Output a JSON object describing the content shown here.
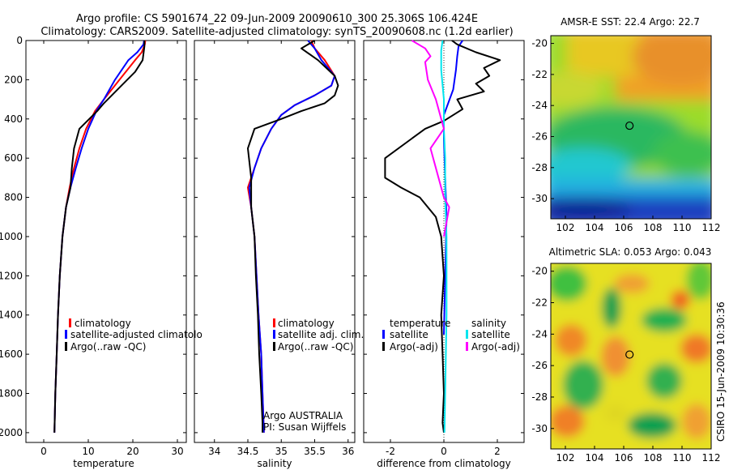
{
  "header": {
    "line1": "Argo profile: CS 5901674_22 09-Jun-2009 20090610_300 25.306S 106.424E",
    "line2": "Climatology: CARS2009. Satellite-adjusted climatology: synTS_20090608.nc (1.2d earlier)"
  },
  "colors": {
    "climatology": "#ff0000",
    "satellite": "#0000ff",
    "argo": "#000000",
    "sal_satellite": "#00e5ee",
    "sal_argo": "#ff00ff"
  },
  "chart_data": [
    {
      "type": "line",
      "id": "temperature",
      "xlabel": "temperature",
      "xlim": [
        -4,
        32
      ],
      "xticks": [
        0,
        10,
        20,
        30
      ],
      "ylim": [
        2050,
        0
      ],
      "yticks": [
        0,
        200,
        400,
        600,
        800,
        1000,
        1200,
        1400,
        1600,
        1800,
        2000
      ],
      "legend": {
        "placement": "bottom-center",
        "entries": [
          "climatology",
          "satellite-adjusted climatolo",
          "Argo(..raw -QC)"
        ]
      },
      "series": [
        {
          "name": "climatology",
          "x": [
            22.8,
            22.7,
            22.0,
            20.5,
            17.0,
            13.5,
            11.5,
            9.5,
            8.0,
            6.8,
            5.8,
            5.0,
            4.2,
            3.6,
            3.2,
            2.9,
            2.6,
            2.4
          ],
          "y": [
            0,
            20,
            60,
            100,
            200,
            300,
            360,
            450,
            550,
            650,
            750,
            850,
            1000,
            1200,
            1400,
            1600,
            1800,
            2000
          ]
        },
        {
          "name": "satellite-adjusted",
          "x": [
            22.5,
            22.4,
            21.0,
            19.0,
            16.0,
            13.5,
            11.8,
            10.0,
            8.5,
            7.2,
            6.0,
            5.0,
            4.2,
            3.6,
            3.2,
            2.9,
            2.6,
            2.4
          ],
          "y": [
            0,
            20,
            60,
            100,
            200,
            300,
            360,
            450,
            550,
            650,
            750,
            850,
            1000,
            1200,
            1400,
            1600,
            1800,
            2000
          ]
        },
        {
          "name": "Argo",
          "x": [
            22.6,
            22.6,
            22.2,
            20.5,
            17.0,
            13.5,
            12.0,
            8.0,
            6.8,
            6.3,
            6.0,
            5.0,
            4.2,
            3.6,
            3.2,
            2.9,
            2.6,
            2.4
          ],
          "y": [
            0,
            30,
            100,
            160,
            240,
            320,
            360,
            450,
            550,
            650,
            750,
            850,
            1000,
            1200,
            1400,
            1600,
            1800,
            2000
          ]
        }
      ]
    },
    {
      "type": "line",
      "id": "salinity",
      "xlabel": "salinity",
      "xlim": [
        33.7,
        36.1
      ],
      "xticks": [
        34,
        34.5,
        35,
        35.5,
        36
      ],
      "ylim": [
        2050,
        0
      ],
      "legend": {
        "placement": "bottom-center",
        "entries": [
          "climatology",
          "satellite adj. clim.",
          "Argo(..raw -QC)"
        ]
      },
      "annotations": [
        "Argo AUSTRALIA",
        "PI: Susan Wijffels"
      ],
      "series": [
        {
          "name": "climatology",
          "x": [
            35.45,
            35.5,
            35.65,
            35.8,
            35.75,
            35.5,
            35.2,
            35.0,
            34.85,
            34.7,
            34.6,
            34.5,
            34.55,
            34.6,
            34.63,
            34.66,
            34.7,
            34.72,
            34.74
          ],
          "y": [
            0,
            40,
            100,
            180,
            230,
            280,
            330,
            380,
            450,
            550,
            650,
            750,
            850,
            1000,
            1200,
            1400,
            1600,
            1800,
            2000
          ]
        },
        {
          "name": "satellite adj. clim.",
          "x": [
            35.4,
            35.5,
            35.6,
            35.8,
            35.75,
            35.5,
            35.2,
            35.0,
            34.85,
            34.7,
            34.6,
            34.52,
            34.55,
            34.6,
            34.63,
            34.66,
            34.7,
            34.72,
            34.74
          ],
          "y": [
            0,
            40,
            100,
            180,
            230,
            280,
            330,
            380,
            450,
            550,
            650,
            750,
            850,
            1000,
            1200,
            1400,
            1600,
            1800,
            2000
          ]
        },
        {
          "name": "Argo",
          "x": [
            35.5,
            35.3,
            35.55,
            35.8,
            35.85,
            35.8,
            35.65,
            35.3,
            35.0,
            34.6,
            34.5,
            34.55,
            34.55,
            34.6,
            34.62,
            34.65,
            34.67,
            34.7,
            34.72,
            34.72
          ],
          "y": [
            0,
            40,
            100,
            180,
            230,
            280,
            320,
            360,
            400,
            450,
            550,
            700,
            850,
            1000,
            1200,
            1400,
            1600,
            1800,
            1950,
            2000
          ]
        }
      ]
    },
    {
      "type": "line",
      "id": "difference",
      "xlabel": "difference from climatology",
      "xlim": [
        -3,
        3
      ],
      "xticks": [
        -2,
        0,
        2
      ],
      "ylim": [
        2050,
        0
      ],
      "legend": {
        "placement": "bottom",
        "groups": [
          "temperature",
          "salinity"
        ],
        "entries": [
          "satellite",
          "Argo(-adj)",
          "satellite",
          "Argo(-adj)"
        ]
      },
      "series": [
        {
          "name": "temperature satellite",
          "x": [
            0.7,
            0.55,
            0.5,
            0.45,
            0.35,
            0.0,
            0.0,
            0.05,
            0.1,
            0.05,
            0.0
          ],
          "y": [
            0,
            30,
            80,
            150,
            250,
            380,
            500,
            700,
            900,
            1200,
            1500
          ]
        },
        {
          "name": "temperature Argo(-adj)",
          "x": [
            0.3,
            0.5,
            1.2,
            2.1,
            1.5,
            1.7,
            1.2,
            1.5,
            0.5,
            0.7,
            0.0,
            -0.7,
            -1.2,
            -2.2,
            -2.2,
            -1.6,
            -0.9,
            -0.3,
            -0.1,
            0.0,
            -0.1,
            -0.05,
            0.0,
            -0.05,
            0.0
          ],
          "y": [
            0,
            20,
            60,
            100,
            140,
            180,
            220,
            260,
            300,
            350,
            410,
            450,
            500,
            600,
            700,
            750,
            800,
            900,
            1000,
            1200,
            1400,
            1600,
            1800,
            1950,
            2000
          ]
        },
        {
          "name": "salinity satellite",
          "x": [
            -0.05,
            -0.1,
            -0.1,
            0.0,
            0.0,
            0.05,
            0.05,
            0.1,
            0.1,
            0.05,
            0.02
          ],
          "y": [
            0,
            50,
            150,
            300,
            450,
            600,
            800,
            1000,
            1400,
            1800,
            2000
          ]
        },
        {
          "name": "salinity Argo(-adj)",
          "x": [
            -1.2,
            -0.7,
            -0.5,
            -0.7,
            -0.6,
            -0.3,
            -0.1,
            0.0,
            -0.5,
            -0.3,
            -0.1,
            0.0,
            0.2,
            0.0
          ],
          "y": [
            0,
            40,
            80,
            110,
            200,
            300,
            400,
            450,
            550,
            650,
            750,
            800,
            850,
            1000
          ]
        }
      ]
    },
    {
      "type": "heatmap",
      "id": "sst_map",
      "title": "AMSR-E SST: 22.4 Argo: 22.7",
      "xlim": [
        101,
        112
      ],
      "ylim": [
        -31.3,
        -19.5
      ],
      "xticks": [
        102,
        104,
        106,
        108,
        110,
        112
      ],
      "yticks": [
        -20,
        -22,
        -24,
        -26,
        -28,
        -30
      ],
      "marker": {
        "lon": 106.4,
        "lat": -25.3
      }
    },
    {
      "type": "heatmap",
      "id": "sla_map",
      "title": "Altimetric SLA: 0.053 Argo: 0.043",
      "xlim": [
        101,
        112
      ],
      "ylim": [
        -31.3,
        -19.5
      ],
      "xticks": [
        102,
        104,
        106,
        108,
        110,
        112
      ],
      "yticks": [
        -20,
        -22,
        -24,
        -26,
        -28,
        -30
      ],
      "marker": {
        "lon": 106.4,
        "lat": -25.3
      }
    }
  ],
  "credit": "CSIRO 15-Jun-2009 10:30:36"
}
